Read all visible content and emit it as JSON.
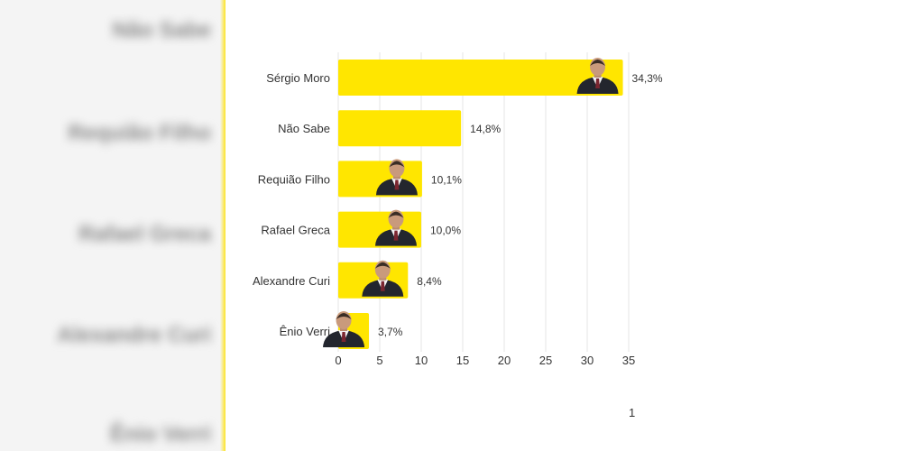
{
  "background_ghost_labels": [
    "Não Sabe",
    "Requião Filho",
    "Rafael Greca",
    "Alexandre Curi",
    "Ênio Verri"
  ],
  "page_number": "1",
  "bar_color": "#FFE600",
  "chart_data": {
    "type": "bar",
    "orientation": "horizontal",
    "categories": [
      "Sérgio Moro",
      "Não Sabe",
      "Requião Filho",
      "Rafael Greca",
      "Alexandre Curi",
      "Ênio Verri"
    ],
    "values": [
      34.3,
      14.8,
      10.1,
      10.0,
      8.4,
      3.7
    ],
    "value_labels": [
      "34,3%",
      "14,8%",
      "10,1%",
      "10,0%",
      "8,4%",
      "3,7%"
    ],
    "has_photo": [
      true,
      false,
      true,
      true,
      true,
      true
    ],
    "xlim": [
      0,
      35
    ],
    "xticks": [
      0,
      5,
      10,
      15,
      20,
      25,
      30,
      35
    ],
    "grid": true,
    "title": "",
    "xlabel": "",
    "ylabel": ""
  }
}
